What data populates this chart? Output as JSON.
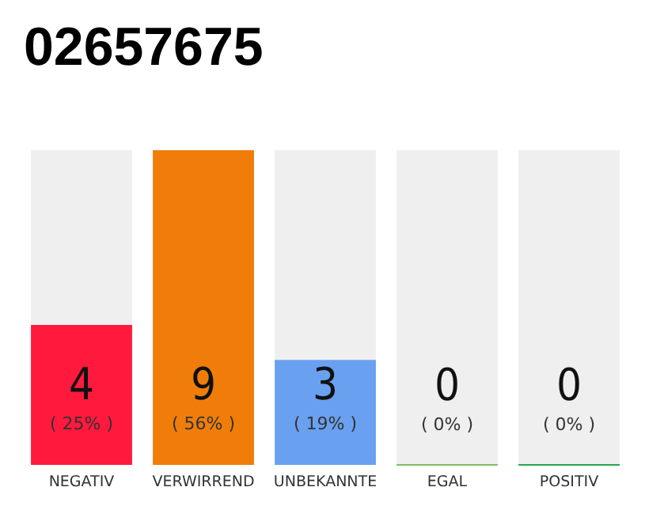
{
  "chart_data": {
    "type": "bar",
    "title": "02657675",
    "categories": [
      "NEGATIV",
      "VERWIRREND",
      "UNBEKANNTE",
      "EGAL",
      "POSITIV"
    ],
    "values": [
      4,
      9,
      3,
      0,
      0
    ],
    "colors": [
      "#ff1a3d",
      "#f07d0a",
      "#6aa0f0",
      "#7cc060",
      "#22a84a"
    ],
    "value_labels": [
      "4\n( 25% )",
      "9\n( 56% )",
      "3\n( 19% )",
      "0\n( 0% )",
      "0\n( 0% )"
    ]
  }
}
